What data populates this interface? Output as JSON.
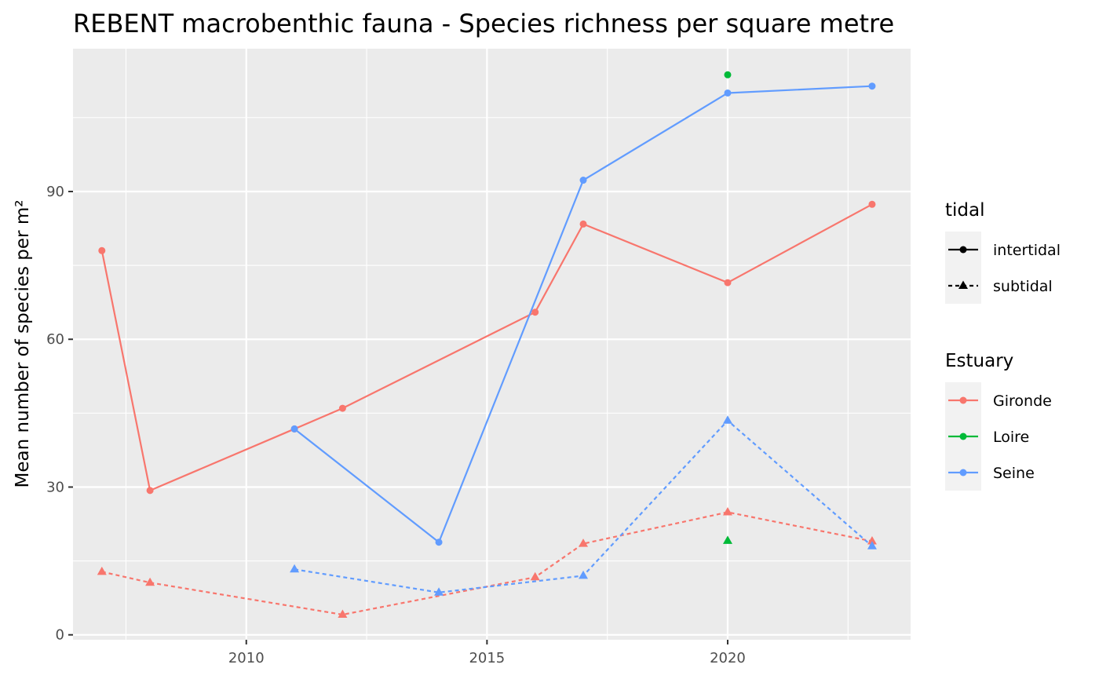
{
  "chart_data": {
    "type": "line",
    "title": "REBENT macrobenthic fauna - Species richness per square metre",
    "xlabel": "",
    "ylabel": "Mean number of species per m²",
    "xlim": [
      2006.4,
      2023.8
    ],
    "ylim": [
      -1,
      119
    ],
    "x_ticks": [
      2010,
      2015,
      2020
    ],
    "x_tick_labels": [
      "2010",
      "2015",
      "2020"
    ],
    "y_ticks": [
      0,
      30,
      60,
      90
    ],
    "y_tick_labels": [
      "0",
      "30",
      "60",
      "90"
    ],
    "grid": true,
    "legends": [
      {
        "title": "tidal",
        "position": "right",
        "entries": [
          {
            "label": "intertidal",
            "linetype": "solid",
            "shape": "circle"
          },
          {
            "label": "subtidal",
            "linetype": "dashed",
            "shape": "triangle"
          }
        ]
      },
      {
        "title": "Estuary",
        "position": "right",
        "entries": [
          {
            "label": "Gironde",
            "color": "#F8766D"
          },
          {
            "label": "Loire",
            "color": "#00BA38"
          },
          {
            "label": "Seine",
            "color": "#619CFF"
          }
        ]
      }
    ],
    "series": [
      {
        "estuary": "Gironde",
        "tidal": "intertidal",
        "color": "#F8766D",
        "x": [
          2007,
          2008,
          2011,
          2012,
          2016,
          2017,
          2020,
          2023
        ],
        "y": [
          78,
          29.3,
          41.8,
          46,
          65.5,
          83.4,
          71.5,
          87.4
        ]
      },
      {
        "estuary": "Gironde",
        "tidal": "subtidal",
        "color": "#F8766D",
        "x": [
          2007,
          2008,
          2012,
          2016,
          2017,
          2020,
          2023
        ],
        "y": [
          12.8,
          10.6,
          4.1,
          11.7,
          18.5,
          24.9,
          19
        ]
      },
      {
        "estuary": "Loire",
        "tidal": "intertidal",
        "color": "#00BA38",
        "x": [
          2020
        ],
        "y": [
          113.7
        ]
      },
      {
        "estuary": "Loire",
        "tidal": "subtidal",
        "color": "#00BA38",
        "x": [
          2020
        ],
        "y": [
          19.1
        ]
      },
      {
        "estuary": "Seine",
        "tidal": "intertidal",
        "color": "#619CFF",
        "x": [
          2011,
          2014,
          2017,
          2020,
          2023
        ],
        "y": [
          41.8,
          18.8,
          92.3,
          110,
          111.4
        ]
      },
      {
        "estuary": "Seine",
        "tidal": "subtidal",
        "color": "#619CFF",
        "x": [
          2011,
          2014,
          2017,
          2020,
          2023
        ],
        "y": [
          13.3,
          8.6,
          12,
          43.5,
          18
        ]
      }
    ]
  }
}
